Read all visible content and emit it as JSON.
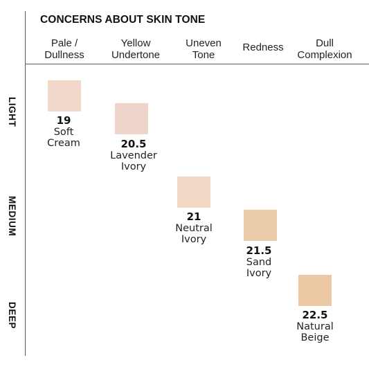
{
  "title": "CONCERNS ABOUT SKIN TONE",
  "columns": [
    "Pale /\nDullness",
    "Yellow\nUndertone",
    "Uneven\nTone",
    "Redness",
    "Dull\nComplexion"
  ],
  "rows": [
    "LIGHT",
    "MEDIUM",
    "DEEP"
  ],
  "shades": [
    {
      "number": "19",
      "name": "Soft\nCream",
      "color": "#f2d8ca"
    },
    {
      "number": "20.5",
      "name": "Lavender\nIvory",
      "color": "#efd4cc"
    },
    {
      "number": "21",
      "name": "Neutral\nIvory",
      "color": "#f1d8c5"
    },
    {
      "number": "21.5",
      "name": "Sand\nIvory",
      "color": "#eccbaa"
    },
    {
      "number": "22.5",
      "name": "Natural\nBeige",
      "color": "#ecc8a5"
    }
  ]
}
